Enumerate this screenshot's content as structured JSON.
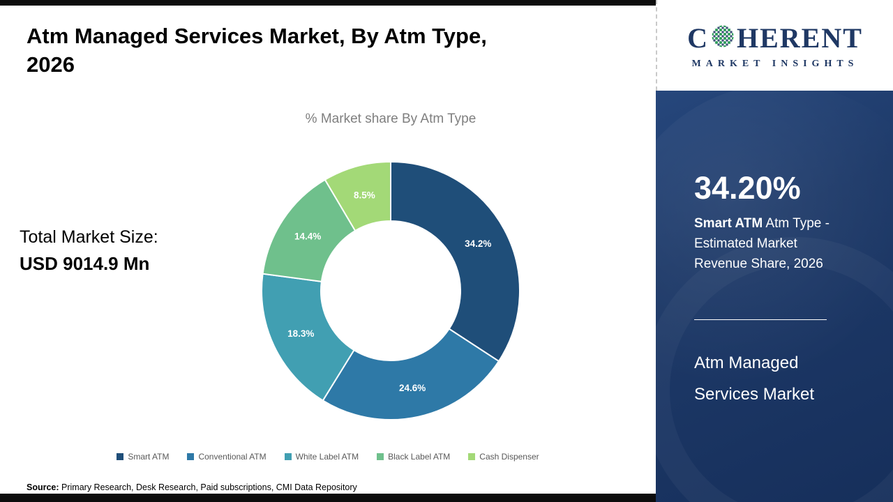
{
  "header": {
    "title_line1": "Atm Managed Services Market, By Atm Type,",
    "title_line2": "2026"
  },
  "chart": {
    "subtitle": "% Market share By Atm Type"
  },
  "market_size": {
    "label": "Total Market Size:",
    "value": "USD 9014.9 Mn"
  },
  "source": {
    "label": "Source:",
    "text": " Primary Research, Desk Research, Paid subscriptions, CMI Data Repository"
  },
  "sidebar": {
    "logo": {
      "brand_first": "C",
      "brand_rest": "HERENT",
      "subtitle": "MARKET INSIGHTS",
      "globe_icon": "dotted-globe",
      "brand_color": "#1f3864"
    },
    "stat_value": "34.20%",
    "stat_bold": "Smart ATM",
    "stat_rest": " Atm Type - Estimated Market Revenue Share, 2026",
    "footer_line1": "Atm Managed",
    "footer_line2": "Services Market",
    "background_color": "#1e3a69"
  },
  "chart_data": {
    "type": "pie",
    "donut": true,
    "title": "% Market share By Atm Type",
    "categories": [
      "Smart ATM",
      "Conventional ATM",
      "White Label ATM",
      "Black Label ATM",
      "Cash Dispenser"
    ],
    "values": [
      34.2,
      24.6,
      18.3,
      14.4,
      8.5
    ],
    "labels": [
      "34.2%",
      "24.6%",
      "18.3%",
      "14.4%",
      "8.5%"
    ],
    "colors": [
      "#1f4e79",
      "#2e79a7",
      "#419fb2",
      "#6fc08c",
      "#a3d977"
    ],
    "start_angle_deg": 0,
    "direction": "clockwise",
    "legend_position": "bottom"
  }
}
